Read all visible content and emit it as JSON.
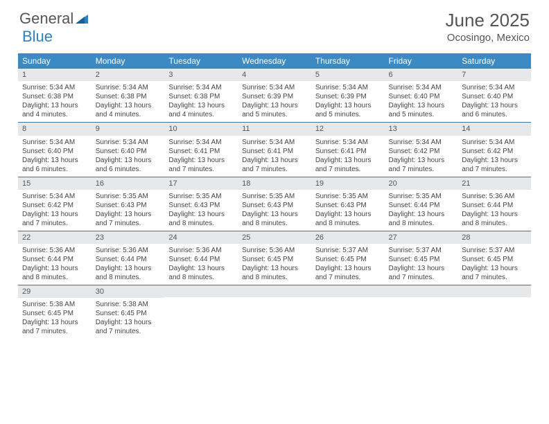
{
  "brand": {
    "word1": "General",
    "word2": "Blue"
  },
  "title": "June 2025",
  "location": "Ocosingo, Mexico",
  "header_bg": "#3b8ac4",
  "header_text": "#ffffff",
  "days_of_week": [
    "Sunday",
    "Monday",
    "Tuesday",
    "Wednesday",
    "Thursday",
    "Friday",
    "Saturday"
  ],
  "weeks": [
    [
      {
        "n": "1",
        "sr": "5:34 AM",
        "ss": "6:38 PM",
        "dl": "13 hours and 4 minutes."
      },
      {
        "n": "2",
        "sr": "5:34 AM",
        "ss": "6:38 PM",
        "dl": "13 hours and 4 minutes."
      },
      {
        "n": "3",
        "sr": "5:34 AM",
        "ss": "6:38 PM",
        "dl": "13 hours and 4 minutes."
      },
      {
        "n": "4",
        "sr": "5:34 AM",
        "ss": "6:39 PM",
        "dl": "13 hours and 5 minutes."
      },
      {
        "n": "5",
        "sr": "5:34 AM",
        "ss": "6:39 PM",
        "dl": "13 hours and 5 minutes."
      },
      {
        "n": "6",
        "sr": "5:34 AM",
        "ss": "6:40 PM",
        "dl": "13 hours and 5 minutes."
      },
      {
        "n": "7",
        "sr": "5:34 AM",
        "ss": "6:40 PM",
        "dl": "13 hours and 6 minutes."
      }
    ],
    [
      {
        "n": "8",
        "sr": "5:34 AM",
        "ss": "6:40 PM",
        "dl": "13 hours and 6 minutes."
      },
      {
        "n": "9",
        "sr": "5:34 AM",
        "ss": "6:40 PM",
        "dl": "13 hours and 6 minutes."
      },
      {
        "n": "10",
        "sr": "5:34 AM",
        "ss": "6:41 PM",
        "dl": "13 hours and 7 minutes."
      },
      {
        "n": "11",
        "sr": "5:34 AM",
        "ss": "6:41 PM",
        "dl": "13 hours and 7 minutes."
      },
      {
        "n": "12",
        "sr": "5:34 AM",
        "ss": "6:41 PM",
        "dl": "13 hours and 7 minutes."
      },
      {
        "n": "13",
        "sr": "5:34 AM",
        "ss": "6:42 PM",
        "dl": "13 hours and 7 minutes."
      },
      {
        "n": "14",
        "sr": "5:34 AM",
        "ss": "6:42 PM",
        "dl": "13 hours and 7 minutes."
      }
    ],
    [
      {
        "n": "15",
        "sr": "5:34 AM",
        "ss": "6:42 PM",
        "dl": "13 hours and 7 minutes."
      },
      {
        "n": "16",
        "sr": "5:35 AM",
        "ss": "6:43 PM",
        "dl": "13 hours and 7 minutes."
      },
      {
        "n": "17",
        "sr": "5:35 AM",
        "ss": "6:43 PM",
        "dl": "13 hours and 8 minutes."
      },
      {
        "n": "18",
        "sr": "5:35 AM",
        "ss": "6:43 PM",
        "dl": "13 hours and 8 minutes."
      },
      {
        "n": "19",
        "sr": "5:35 AM",
        "ss": "6:43 PM",
        "dl": "13 hours and 8 minutes."
      },
      {
        "n": "20",
        "sr": "5:35 AM",
        "ss": "6:44 PM",
        "dl": "13 hours and 8 minutes."
      },
      {
        "n": "21",
        "sr": "5:36 AM",
        "ss": "6:44 PM",
        "dl": "13 hours and 8 minutes."
      }
    ],
    [
      {
        "n": "22",
        "sr": "5:36 AM",
        "ss": "6:44 PM",
        "dl": "13 hours and 8 minutes."
      },
      {
        "n": "23",
        "sr": "5:36 AM",
        "ss": "6:44 PM",
        "dl": "13 hours and 8 minutes."
      },
      {
        "n": "24",
        "sr": "5:36 AM",
        "ss": "6:44 PM",
        "dl": "13 hours and 8 minutes."
      },
      {
        "n": "25",
        "sr": "5:36 AM",
        "ss": "6:45 PM",
        "dl": "13 hours and 8 minutes."
      },
      {
        "n": "26",
        "sr": "5:37 AM",
        "ss": "6:45 PM",
        "dl": "13 hours and 7 minutes."
      },
      {
        "n": "27",
        "sr": "5:37 AM",
        "ss": "6:45 PM",
        "dl": "13 hours and 7 minutes."
      },
      {
        "n": "28",
        "sr": "5:37 AM",
        "ss": "6:45 PM",
        "dl": "13 hours and 7 minutes."
      }
    ],
    [
      {
        "n": "29",
        "sr": "5:38 AM",
        "ss": "6:45 PM",
        "dl": "13 hours and 7 minutes."
      },
      {
        "n": "30",
        "sr": "5:38 AM",
        "ss": "6:45 PM",
        "dl": "13 hours and 7 minutes."
      },
      null,
      null,
      null,
      null,
      null
    ]
  ],
  "labels": {
    "sunrise": "Sunrise:",
    "sunset": "Sunset:",
    "daylight": "Daylight:"
  }
}
